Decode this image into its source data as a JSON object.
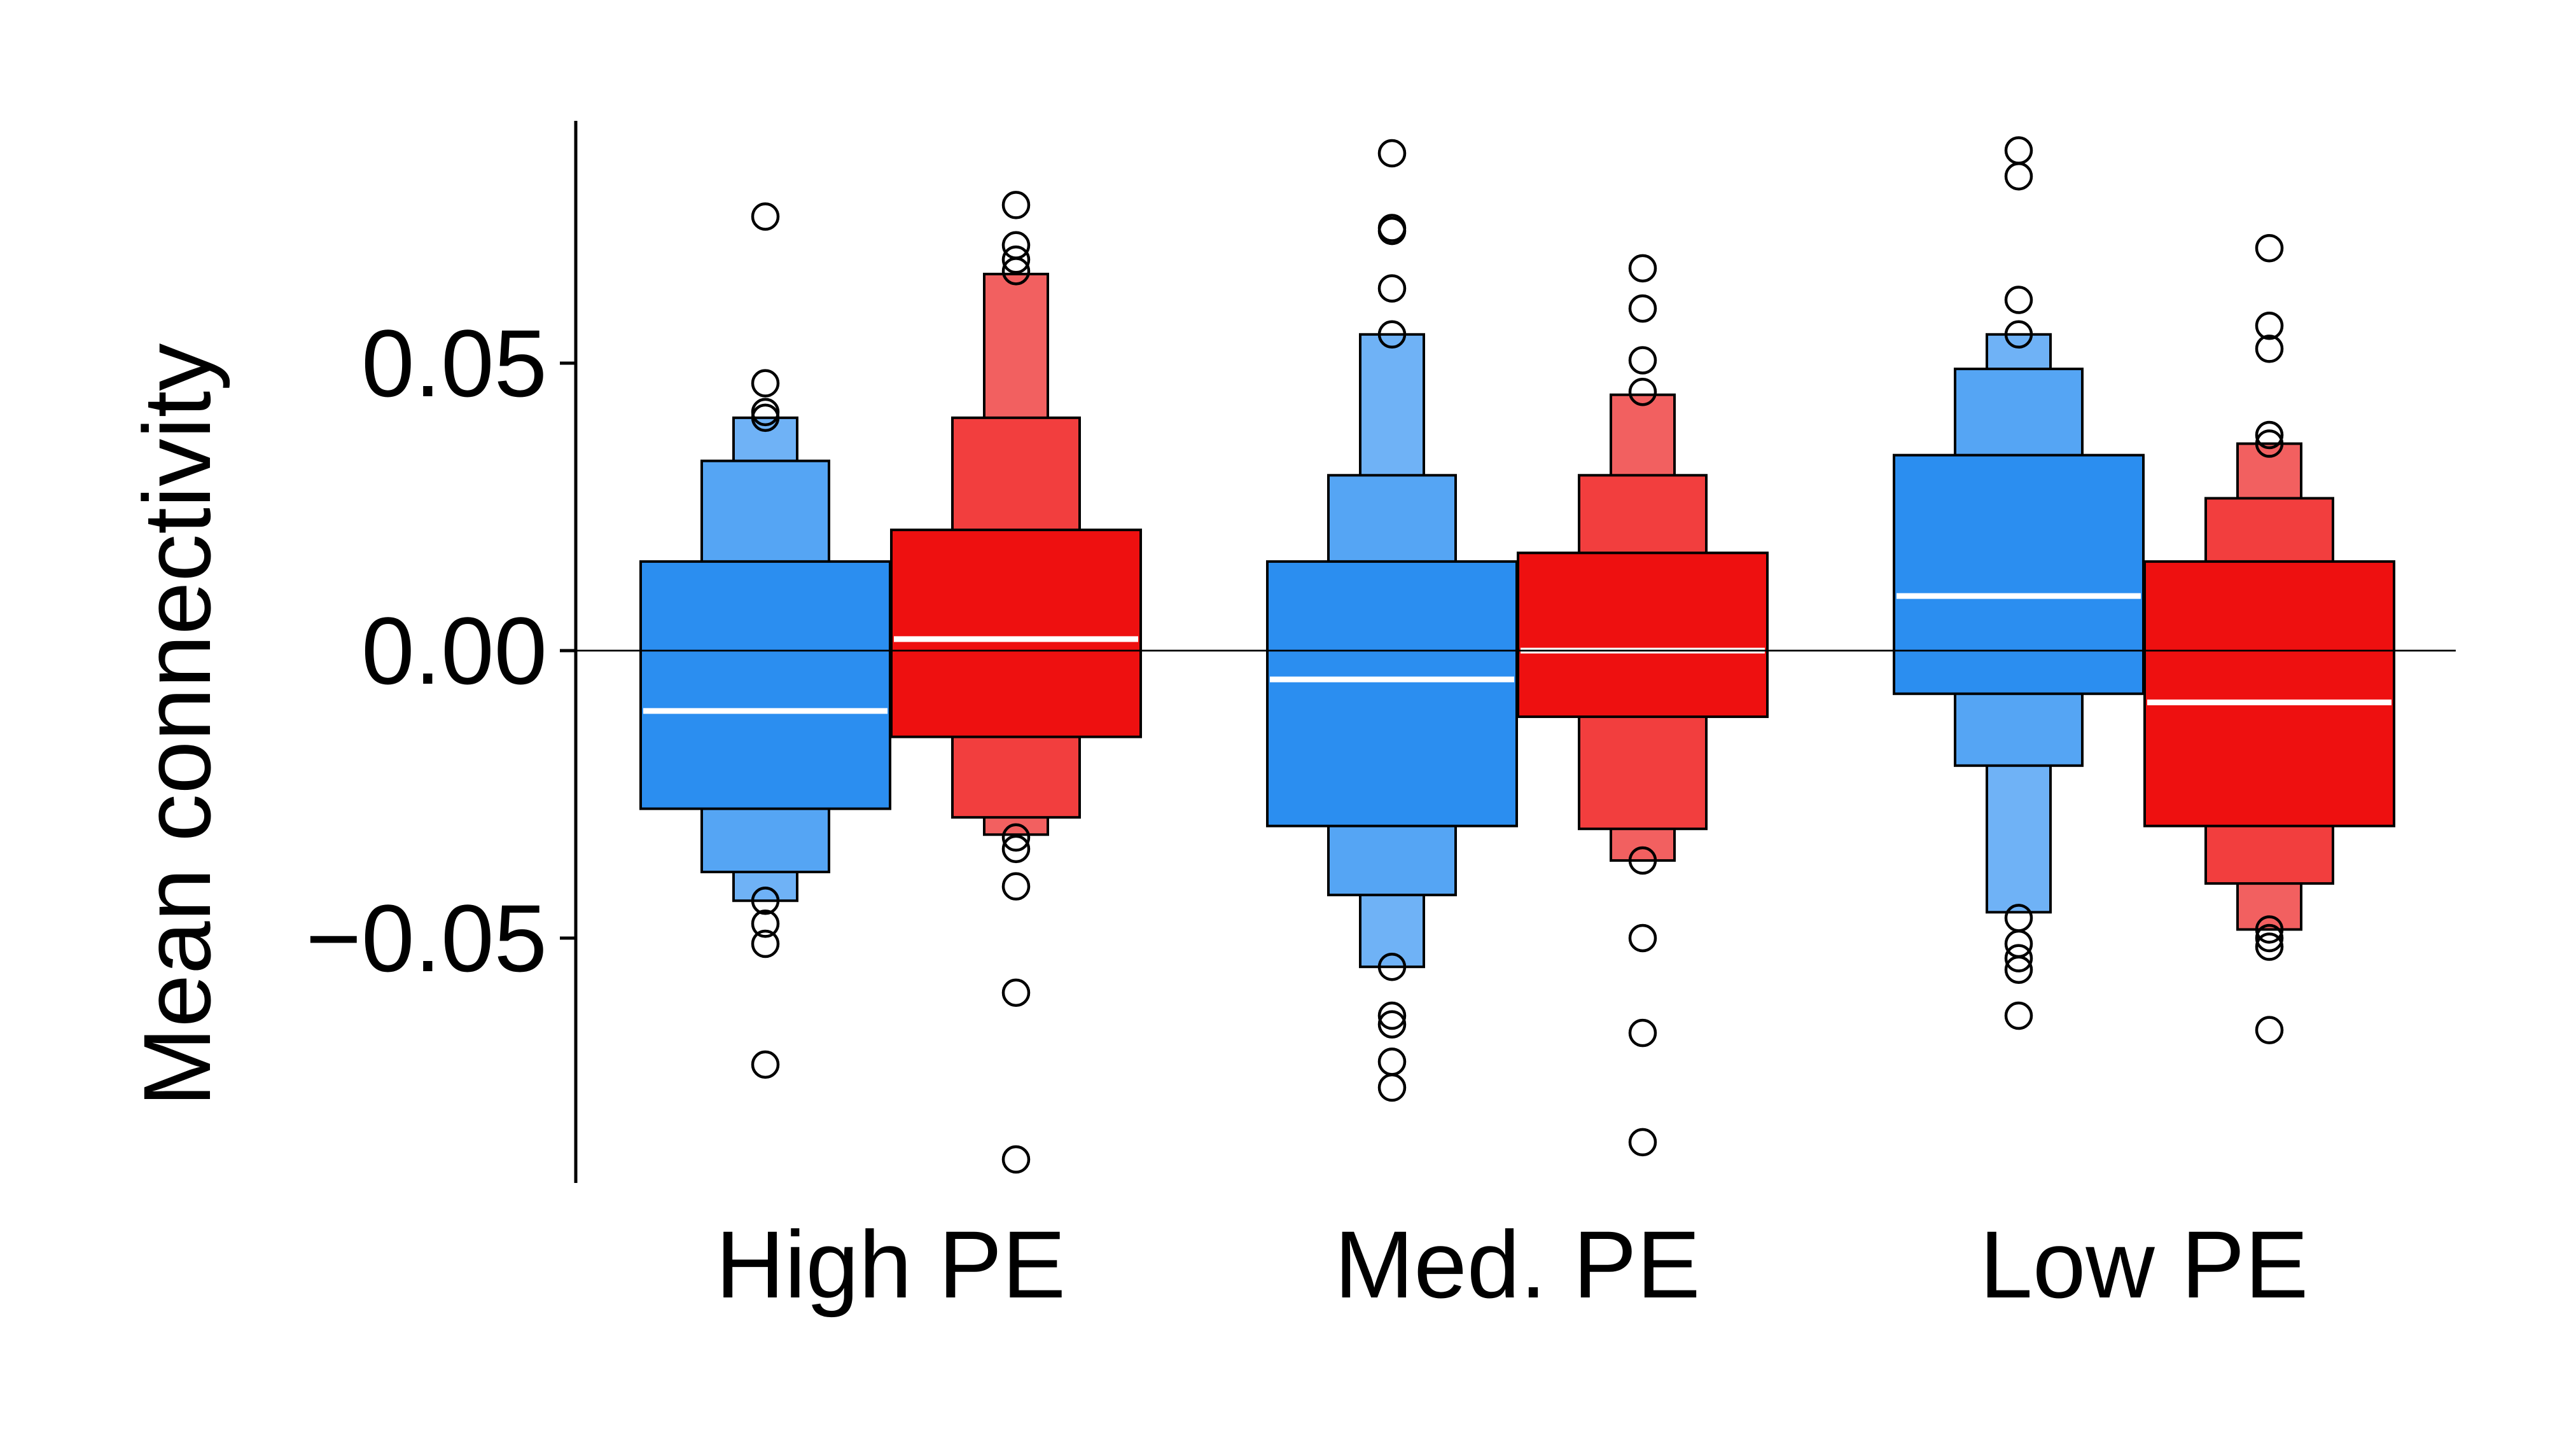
{
  "chart_data": {
    "type": "letter-value boxplot",
    "ylabel": "Mean connectivity",
    "xlabel": "",
    "categories": [
      "High PE",
      "Med. PE",
      "Low PE"
    ],
    "y_ticks": [
      -0.05,
      0.0,
      0.05
    ],
    "y_tick_labels": [
      "−0.05",
      "0.00",
      "0.05"
    ],
    "ylim": [
      -0.092,
      0.092
    ],
    "reference_line": 0.0,
    "grid": false,
    "legend": "none",
    "colors": {
      "blue": [
        "#2B8EF0",
        "#55A5F4",
        "#6FB2F6"
      ],
      "red": [
        "#EE1010",
        "#F23E3E",
        "#F26060"
      ],
      "median": "#FFFFFF",
      "outline": "#000000"
    },
    "series": [
      {
        "color_key": "blue",
        "boxes": [
          {
            "category": "High PE",
            "median": -0.0105,
            "levels": [
              [
                -0.0275,
                0.0155
              ],
              [
                -0.0385,
                0.033
              ],
              [
                -0.0435,
                0.0405
              ]
            ],
            "outliers": [
              0.0755,
              0.0465,
              0.0415,
              0.0405,
              -0.0435,
              -0.0475,
              -0.051,
              -0.072
            ]
          },
          {
            "category": "Med. PE",
            "median": -0.005,
            "levels": [
              [
                -0.0305,
                0.0155
              ],
              [
                -0.0425,
                0.0305
              ],
              [
                -0.055,
                0.055
              ]
            ],
            "outliers": [
              0.0865,
              0.0735,
              0.073,
              0.063,
              0.055,
              -0.055,
              -0.0635,
              -0.065,
              -0.0715,
              -0.076
            ]
          },
          {
            "category": "Low PE",
            "median": 0.0095,
            "levels": [
              [
                -0.0075,
                0.034
              ],
              [
                -0.02,
                0.049
              ],
              [
                -0.0455,
                0.055
              ]
            ],
            "outliers": [
              0.087,
              0.0825,
              0.061,
              0.055,
              -0.0465,
              -0.051,
              -0.0535,
              -0.0555,
              -0.0635
            ]
          }
        ]
      },
      {
        "color_key": "red",
        "boxes": [
          {
            "category": "High PE",
            "median": 0.002,
            "levels": [
              [
                -0.015,
                0.021
              ],
              [
                -0.029,
                0.0405
              ],
              [
                -0.032,
                0.0655
              ]
            ],
            "outliers": [
              0.0775,
              0.0705,
              0.068,
              0.066,
              -0.0325,
              -0.0345,
              -0.041,
              -0.0595,
              -0.0885
            ]
          },
          {
            "category": "Med. PE",
            "median": 0.0,
            "levels": [
              [
                -0.0115,
                0.017
              ],
              [
                -0.031,
                0.0305
              ],
              [
                -0.0365,
                0.0445
              ]
            ],
            "outliers": [
              0.0665,
              0.0595,
              0.0505,
              0.045,
              -0.0365,
              -0.05,
              -0.0665,
              -0.0855
            ]
          },
          {
            "category": "Low PE",
            "median": -0.009,
            "levels": [
              [
                -0.0305,
                0.0155
              ],
              [
                -0.0405,
                0.0265
              ],
              [
                -0.0485,
                0.036
              ]
            ],
            "outliers": [
              0.07,
              0.0565,
              0.0525,
              0.0375,
              0.036,
              -0.0485,
              -0.05,
              -0.0515,
              -0.066
            ]
          }
        ]
      }
    ]
  }
}
